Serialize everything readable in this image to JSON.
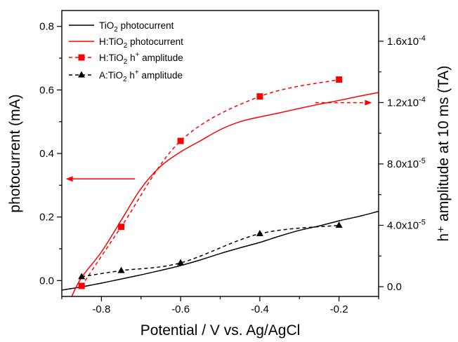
{
  "chart_data": {
    "type": "line",
    "xlabel": "Potential / V vs. Ag/AgCl",
    "ylabel_left": "photocurrent (mA)",
    "ylabel_right": "h⁺ amplitude at 10 ms (TA)",
    "xlim": [
      -0.9,
      -0.1
    ],
    "ylim_left": [
      -0.05,
      0.85
    ],
    "ylim_right": [
      -6.36e-06,
      0.00018
    ],
    "x_ticks": [
      "-0.8",
      "-0.6",
      "-0.4",
      "-0.2"
    ],
    "x_tick_values": [
      -0.8,
      -0.6,
      -0.4,
      -0.2
    ],
    "y_left_ticks": [
      "0.0",
      "0.2",
      "0.4",
      "0.6",
      "0.8"
    ],
    "y_left_tick_values": [
      0.0,
      0.2,
      0.4,
      0.6,
      0.8
    ],
    "y_right_ticks": [
      "0.0",
      "4.0x10⁻⁵",
      "8.0x10⁻⁵",
      "1.2x10⁻⁴",
      "1.6x10⁻⁴"
    ],
    "y_right_tick_values": [
      0.0,
      4e-05,
      8e-05,
      0.00012,
      0.00016
    ],
    "grid": false,
    "legend_position": "top-left",
    "series": [
      {
        "name": "TiO₂ photocurrent",
        "axis": "left",
        "style": "solid",
        "color": "#000000",
        "marker": "none",
        "x": [
          -0.9,
          -0.85,
          -0.8,
          -0.75,
          -0.7,
          -0.65,
          -0.6,
          -0.55,
          -0.5,
          -0.45,
          -0.4,
          -0.35,
          -0.3,
          -0.25,
          -0.2,
          -0.15,
          -0.1
        ],
        "y": [
          -0.03,
          -0.02,
          -0.008,
          0.005,
          0.018,
          0.032,
          0.047,
          0.065,
          0.085,
          0.103,
          0.12,
          0.14,
          0.158,
          0.172,
          0.188,
          0.202,
          0.218
        ]
      },
      {
        "name": "H:TiO₂ photocurrent",
        "axis": "left",
        "style": "solid",
        "color": "#ff0000",
        "marker": "none",
        "x": [
          -0.875,
          -0.85,
          -0.8,
          -0.75,
          -0.7,
          -0.65,
          -0.6,
          -0.55,
          -0.5,
          -0.45,
          -0.4,
          -0.35,
          -0.3,
          -0.25,
          -0.2,
          -0.15,
          -0.1
        ],
        "y": [
          -0.05,
          0.01,
          0.09,
          0.19,
          0.29,
          0.36,
          0.405,
          0.44,
          0.475,
          0.5,
          0.515,
          0.528,
          0.542,
          0.555,
          0.567,
          0.58,
          0.592
        ]
      },
      {
        "name": "H:TiO₂ h⁺ amplitude",
        "axis": "right",
        "style": "dashed",
        "color": "#ff0000",
        "marker": "square",
        "x": [
          -0.85,
          -0.75,
          -0.6,
          -0.4,
          -0.2
        ],
        "y": [
          5e-07,
          3.9e-05,
          9.5e-05,
          0.000124,
          0.000135
        ]
      },
      {
        "name": "A:TiO₂ h⁺ amplitude",
        "axis": "right",
        "style": "dashed",
        "color": "#000000",
        "marker": "triangle",
        "x": [
          -0.85,
          -0.75,
          -0.6,
          -0.4,
          -0.2
        ],
        "y": [
          6.5e-06,
          1.05e-05,
          1.55e-05,
          3.45e-05,
          4e-05
        ]
      }
    ],
    "legend": [
      {
        "pre": "TiO",
        "sub": "2",
        "post": " photocurrent",
        "sup": "",
        "post2": ""
      },
      {
        "pre": "H:TiO",
        "sub": "2",
        "post": " photocurrent",
        "sup": "",
        "post2": ""
      },
      {
        "pre": "H:TiO",
        "sub": "2",
        "post": " h",
        "sup": "+",
        "post2": " amplitude"
      },
      {
        "pre": "A:TiO",
        "sub": "2",
        "post": " h",
        "sup": "+",
        "post2": " amplitude"
      }
    ],
    "annotations": [
      {
        "type": "arrow",
        "color": "#ff0000",
        "style": "solid",
        "points_to": "left axis"
      },
      {
        "type": "arrow",
        "color": "#ff0000",
        "style": "dashed",
        "points_to": "right axis"
      }
    ]
  }
}
